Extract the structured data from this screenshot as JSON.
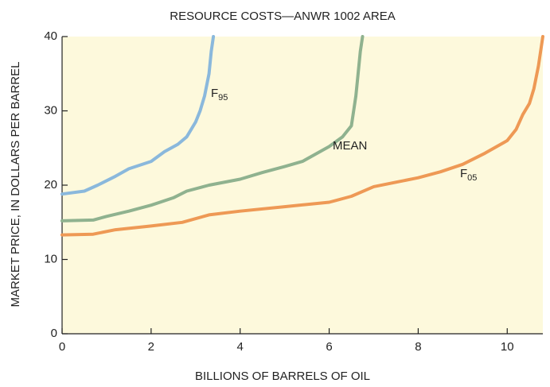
{
  "chart_data": {
    "type": "line",
    "title": "RESOURCE COSTS—ANWR 1002 AREA",
    "xlabel": "BILLIONS OF BARRELS OF OIL",
    "ylabel": "MARKET PRICE, IN DOLLARS PER BARREL",
    "xlim": [
      0,
      10.8
    ],
    "ylim": [
      0,
      40
    ],
    "xticks": [
      0,
      2,
      4,
      6,
      8,
      10
    ],
    "yticks": [
      0,
      10,
      20,
      30,
      40
    ],
    "background": "#fdf9dc",
    "annotations": [
      {
        "text": "F",
        "subscript": "95"
      },
      {
        "text": "MEAN"
      },
      {
        "text": "F",
        "subscript": "05"
      }
    ],
    "series": [
      {
        "color": "#8ab8dc",
        "x": [
          0,
          0.5,
          0.8,
          1.2,
          1.5,
          2,
          2.3,
          2.6,
          2.8,
          3,
          3.1,
          3.2,
          3.3,
          3.35,
          3.4
        ],
        "values": [
          18.8,
          19.2,
          20,
          21.2,
          22.2,
          23.2,
          24.5,
          25.5,
          26.5,
          28.5,
          30,
          32,
          35,
          38,
          40
        ]
      },
      {
        "color": "#8fb28f",
        "x": [
          0,
          0.7,
          1,
          1.5,
          2,
          2.5,
          2.8,
          3.3,
          4,
          4.5,
          5,
          5.4,
          5.7,
          6,
          6.3,
          6.5,
          6.55,
          6.6,
          6.65,
          6.7,
          6.75
        ],
        "values": [
          15.2,
          15.3,
          15.8,
          16.5,
          17.3,
          18.3,
          19.2,
          20,
          20.8,
          21.7,
          22.5,
          23.2,
          24.2,
          25.2,
          26.5,
          28,
          30,
          32,
          35,
          38,
          40
        ]
      },
      {
        "color": "#ee9955",
        "x": [
          0,
          0.7,
          1.2,
          2,
          2.7,
          3.3,
          4,
          5,
          6,
          6.5,
          7,
          7.5,
          8,
          8.5,
          9,
          9.5,
          10,
          10.2,
          10.35,
          10.5,
          10.6,
          10.7,
          10.8
        ],
        "values": [
          13.3,
          13.4,
          14,
          14.5,
          15,
          16,
          16.5,
          17.1,
          17.7,
          18.5,
          19.8,
          20.4,
          21,
          21.8,
          22.8,
          24.3,
          26,
          27.5,
          29.5,
          31,
          33,
          36,
          40
        ]
      }
    ]
  }
}
